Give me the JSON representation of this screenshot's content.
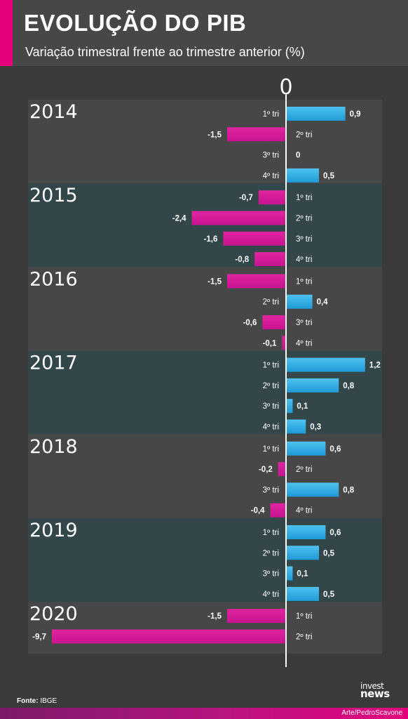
{
  "header": {
    "title": "EVOLUÇÃO DO PIB",
    "subtitle": "Variação trimestral frente ao trimestre anterior (%)"
  },
  "footer": {
    "source_label": "Fonte:",
    "source_value": "IBGE",
    "credit": "Arte/PedroScavone",
    "logo_top": "invest",
    "logo_bottom": "news"
  },
  "colors": {
    "positive": "#1e9ad6",
    "negative": "#c8148f",
    "band_dark": "#474747",
    "band_teal": "#33474a",
    "accent": "#e5007d"
  },
  "chart_data": {
    "type": "bar",
    "orientation": "horizontal",
    "zero_label": "0",
    "groups": [
      {
        "year": "2014",
        "quarters": [
          {
            "label": "1º tri",
            "value": 0.9,
            "value_label": "0,9"
          },
          {
            "label": "2º tri",
            "value": -1.5,
            "value_label": "-1,5"
          },
          {
            "label": "3º tri",
            "value": 0,
            "value_label": "0"
          },
          {
            "label": "4º tri",
            "value": 0.5,
            "value_label": "0,5"
          }
        ]
      },
      {
        "year": "2015",
        "quarters": [
          {
            "label": "1º tri",
            "value": -0.7,
            "value_label": "-0,7"
          },
          {
            "label": "2º tri",
            "value": -2.4,
            "value_label": "-2,4"
          },
          {
            "label": "3º tri",
            "value": -1.6,
            "value_label": "-1,6"
          },
          {
            "label": "4º tri",
            "value": -0.8,
            "value_label": "-0,8"
          }
        ]
      },
      {
        "year": "2016",
        "quarters": [
          {
            "label": "1º tri",
            "value": -1.5,
            "value_label": "-1,5"
          },
          {
            "label": "2º tri",
            "value": 0.4,
            "value_label": "0,4"
          },
          {
            "label": "3º tri",
            "value": -0.6,
            "value_label": "-0,6"
          },
          {
            "label": "4º tri",
            "value": -0.1,
            "value_label": "-0,1"
          }
        ]
      },
      {
        "year": "2017",
        "quarters": [
          {
            "label": "1º tri",
            "value": 1.2,
            "value_label": "1,2"
          },
          {
            "label": "2º tri",
            "value": 0.8,
            "value_label": "0,8"
          },
          {
            "label": "3º tri",
            "value": 0.1,
            "value_label": "0,1"
          },
          {
            "label": "4º tri",
            "value": 0.3,
            "value_label": "0,3"
          }
        ]
      },
      {
        "year": "2018",
        "quarters": [
          {
            "label": "1º tri",
            "value": 0.6,
            "value_label": "0,6"
          },
          {
            "label": "2º tri",
            "value": -0.2,
            "value_label": "-0,2"
          },
          {
            "label": "3º tri",
            "value": 0.8,
            "value_label": "0,8"
          },
          {
            "label": "4º tri",
            "value": -0.4,
            "value_label": "-0,4"
          }
        ]
      },
      {
        "year": "2019",
        "quarters": [
          {
            "label": "1º tri",
            "value": 0.6,
            "value_label": "0,6"
          },
          {
            "label": "2º tri",
            "value": 0.5,
            "value_label": "0,5"
          },
          {
            "label": "3º tri",
            "value": 0.1,
            "value_label": "0,1"
          },
          {
            "label": "4º tri",
            "value": 0.5,
            "value_label": "0,5"
          }
        ]
      },
      {
        "year": "2020",
        "quarters": [
          {
            "label": "1º tri",
            "value": -1.5,
            "value_label": "-1,5"
          },
          {
            "label": "2º tri",
            "value": -9.7,
            "value_label": "-9,7"
          }
        ]
      }
    ]
  }
}
